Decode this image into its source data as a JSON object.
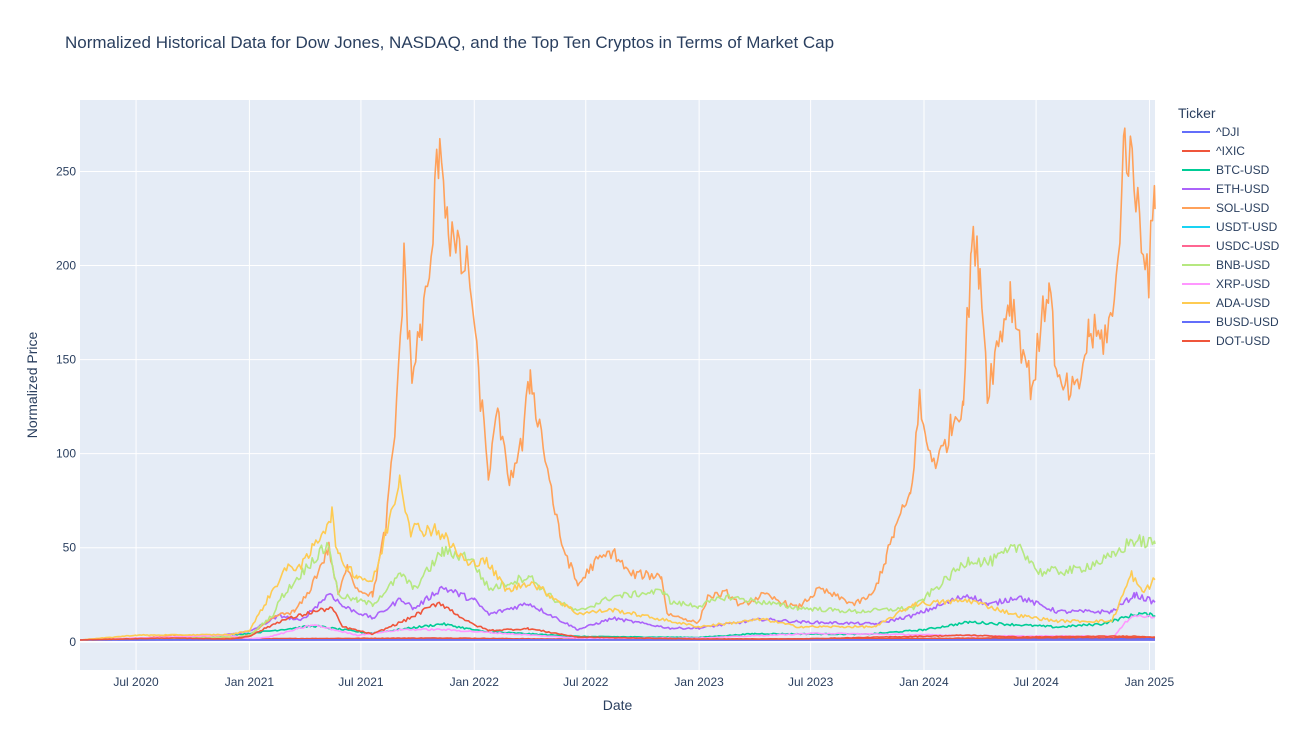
{
  "chart_data": {
    "type": "line",
    "title": "Normalized Historical Data for Dow Jones, NASDAQ, and the Top Ten Cryptos in Terms of Market Cap",
    "xlabel": "Date",
    "ylabel": "Normalized Price",
    "xlim": [
      "2020-04-01",
      "2025-01-10"
    ],
    "ylim": [
      -15,
      288
    ],
    "x_ticks": [
      {
        "date": "2020-07-01",
        "label": "Jul 2020"
      },
      {
        "date": "2021-01-01",
        "label": "Jan 2021"
      },
      {
        "date": "2021-07-01",
        "label": "Jul 2021"
      },
      {
        "date": "2022-01-01",
        "label": "Jan 2022"
      },
      {
        "date": "2022-07-01",
        "label": "Jul 2022"
      },
      {
        "date": "2023-01-01",
        "label": "Jan 2023"
      },
      {
        "date": "2023-07-01",
        "label": "Jul 2023"
      },
      {
        "date": "2024-01-01",
        "label": "Jan 2024"
      },
      {
        "date": "2024-07-01",
        "label": "Jul 2024"
      },
      {
        "date": "2025-01-01",
        "label": "Jan 2025"
      }
    ],
    "y_ticks": [
      0,
      50,
      100,
      150,
      200,
      250
    ],
    "grid": true,
    "legend": {
      "title": "Ticker",
      "placement": "right"
    },
    "series": [
      {
        "name": "^DJI",
        "color": "#636efa",
        "points": [
          [
            "2020-04-01",
            1.0
          ],
          [
            "2021-01-01",
            1.2
          ],
          [
            "2022-01-01",
            1.4
          ],
          [
            "2023-01-01",
            1.3
          ],
          [
            "2024-01-01",
            1.5
          ],
          [
            "2025-01-10",
            1.7
          ]
        ]
      },
      {
        "name": "^IXIC",
        "color": "#ef553b",
        "points": [
          [
            "2020-04-01",
            1.0
          ],
          [
            "2021-01-01",
            1.6
          ],
          [
            "2021-11-15",
            2.0
          ],
          [
            "2022-06-15",
            1.3
          ],
          [
            "2023-01-01",
            1.3
          ],
          [
            "2024-01-01",
            1.8
          ],
          [
            "2025-01-10",
            2.4
          ]
        ]
      },
      {
        "name": "BTC-USD",
        "color": "#00cc96",
        "points": [
          [
            "2020-04-01",
            1.0
          ],
          [
            "2020-10-01",
            1.7
          ],
          [
            "2021-01-01",
            4.5
          ],
          [
            "2021-04-15",
            8.5
          ],
          [
            "2021-07-15",
            4.5
          ],
          [
            "2021-11-10",
            9.5
          ],
          [
            "2022-01-15",
            5.5
          ],
          [
            "2022-06-20",
            2.8
          ],
          [
            "2022-12-31",
            2.3
          ],
          [
            "2023-04-01",
            4.3
          ],
          [
            "2023-10-01",
            4.0
          ],
          [
            "2024-01-01",
            6.4
          ],
          [
            "2024-03-15",
            10.5
          ],
          [
            "2024-08-05",
            7.8
          ],
          [
            "2024-10-15",
            9.5
          ],
          [
            "2024-12-15",
            15.0
          ],
          [
            "2025-01-10",
            14.0
          ]
        ]
      },
      {
        "name": "ETH-USD",
        "color": "#ab63fa",
        "points": [
          [
            "2020-04-01",
            1.0
          ],
          [
            "2020-07-01",
            1.7
          ],
          [
            "2020-11-01",
            2.7
          ],
          [
            "2021-01-01",
            5.5
          ],
          [
            "2021-02-20",
            14.0
          ],
          [
            "2021-03-25",
            11.0
          ],
          [
            "2021-05-12",
            26.0
          ],
          [
            "2021-06-01",
            19.0
          ],
          [
            "2021-07-20",
            12.5
          ],
          [
            "2021-09-05",
            23.0
          ],
          [
            "2021-09-25",
            17.5
          ],
          [
            "2021-11-10",
            29.0
          ],
          [
            "2022-01-01",
            22.0
          ],
          [
            "2022-01-25",
            14.5
          ],
          [
            "2022-03-30",
            20.5
          ],
          [
            "2022-06-18",
            6.5
          ],
          [
            "2022-08-14",
            12.5
          ],
          [
            "2022-11-15",
            7.2
          ],
          [
            "2023-01-01",
            7.3
          ],
          [
            "2023-04-15",
            12.0
          ],
          [
            "2023-06-15",
            10.5
          ],
          [
            "2023-10-15",
            9.5
          ],
          [
            "2023-12-15",
            14.0
          ],
          [
            "2024-03-12",
            25.0
          ],
          [
            "2024-04-15",
            19.5
          ],
          [
            "2024-06-01",
            24.0
          ],
          [
            "2024-08-05",
            16.0
          ],
          [
            "2024-11-01",
            16.0
          ],
          [
            "2024-12-08",
            25.0
          ],
          [
            "2025-01-10",
            21.0
          ]
        ]
      },
      {
        "name": "SOL-USD",
        "color": "#ffa15a",
        "points": [
          [
            "2020-04-01",
            1.0
          ],
          [
            "2020-07-15",
            2.0
          ],
          [
            "2020-09-01",
            3.6
          ],
          [
            "2020-12-01",
            2.0
          ],
          [
            "2021-01-01",
            3.5
          ],
          [
            "2021-02-15",
            14.0
          ],
          [
            "2021-03-15",
            16.0
          ],
          [
            "2021-04-05",
            25.0
          ],
          [
            "2021-05-10",
            50.0
          ],
          [
            "2021-05-25",
            25.0
          ],
          [
            "2021-06-10",
            40.0
          ],
          [
            "2021-06-25",
            28.0
          ],
          [
            "2021-07-20",
            25.0
          ],
          [
            "2021-08-10",
            60.0
          ],
          [
            "2021-08-25",
            110.0
          ],
          [
            "2021-09-09",
            200.0
          ],
          [
            "2021-09-22",
            140.0
          ],
          [
            "2021-10-05",
            165.0
          ],
          [
            "2021-10-20",
            190.0
          ],
          [
            "2021-11-06",
            272.0
          ],
          [
            "2021-11-20",
            220.0
          ],
          [
            "2021-12-05",
            205.0
          ],
          [
            "2021-12-25",
            195.0
          ],
          [
            "2022-01-05",
            150.0
          ],
          [
            "2022-01-24",
            90.0
          ],
          [
            "2022-02-10",
            122.0
          ],
          [
            "2022-02-24",
            85.0
          ],
          [
            "2022-03-20",
            105.0
          ],
          [
            "2022-04-02",
            142.0
          ],
          [
            "2022-04-30",
            92.0
          ],
          [
            "2022-05-20",
            55.0
          ],
          [
            "2022-06-18",
            30.0
          ],
          [
            "2022-07-15",
            42.0
          ],
          [
            "2022-08-14",
            48.0
          ],
          [
            "2022-09-10",
            36.0
          ],
          [
            "2022-11-01",
            35.0
          ],
          [
            "2022-11-10",
            15.0
          ],
          [
            "2022-12-31",
            10.0
          ],
          [
            "2023-01-15",
            24.0
          ],
          [
            "2023-02-15",
            26.0
          ],
          [
            "2023-03-10",
            19.0
          ],
          [
            "2023-04-15",
            25.0
          ],
          [
            "2023-06-10",
            18.0
          ],
          [
            "2023-07-15",
            28.0
          ],
          [
            "2023-09-10",
            20.0
          ],
          [
            "2023-10-10",
            25.0
          ],
          [
            "2023-11-01",
            45.0
          ],
          [
            "2023-11-15",
            60.0
          ],
          [
            "2023-12-10",
            78.0
          ],
          [
            "2023-12-25",
            127.0
          ],
          [
            "2024-01-05",
            105.0
          ],
          [
            "2024-01-23",
            95.0
          ],
          [
            "2024-02-15",
            115.0
          ],
          [
            "2024-03-05",
            130.0
          ],
          [
            "2024-03-18",
            210.0
          ],
          [
            "2024-04-01",
            200.0
          ],
          [
            "2024-04-13",
            135.0
          ],
          [
            "2024-05-20",
            185.0
          ],
          [
            "2024-06-24",
            135.0
          ],
          [
            "2024-07-22",
            193.0
          ],
          [
            "2024-08-05",
            135.0
          ],
          [
            "2024-09-06",
            132.0
          ],
          [
            "2024-09-25",
            165.0
          ],
          [
            "2024-10-15",
            160.0
          ],
          [
            "2024-11-05",
            175.0
          ],
          [
            "2024-11-22",
            270.0
          ],
          [
            "2024-12-10",
            240.0
          ],
          [
            "2024-12-31",
            195.0
          ],
          [
            "2025-01-06",
            225.0
          ],
          [
            "2025-01-10",
            230.0
          ]
        ]
      },
      {
        "name": "USDT-USD",
        "color": "#19d3f3",
        "points": [
          [
            "2020-04-01",
            1.0
          ],
          [
            "2025-01-10",
            1.0
          ]
        ]
      },
      {
        "name": "USDC-USD",
        "color": "#ff6692",
        "points": [
          [
            "2020-04-01",
            1.0
          ],
          [
            "2025-01-10",
            1.0
          ]
        ]
      },
      {
        "name": "BNB-USD",
        "color": "#b6e880",
        "points": [
          [
            "2020-04-01",
            1.0
          ],
          [
            "2020-10-01",
            2.2
          ],
          [
            "2021-01-01",
            3.0
          ],
          [
            "2021-02-10",
            15.0
          ],
          [
            "2021-02-20",
            23.0
          ],
          [
            "2021-04-10",
            42.0
          ],
          [
            "2021-05-10",
            52.0
          ],
          [
            "2021-05-25",
            25.0
          ],
          [
            "2021-06-25",
            22.0
          ],
          [
            "2021-07-20",
            20.0
          ],
          [
            "2021-09-05",
            36.0
          ],
          [
            "2021-09-25",
            28.0
          ],
          [
            "2021-11-10",
            48.0
          ],
          [
            "2021-12-25",
            45.0
          ],
          [
            "2022-01-25",
            28.0
          ],
          [
            "2022-03-30",
            35.0
          ],
          [
            "2022-05-12",
            22.0
          ],
          [
            "2022-06-18",
            16.0
          ],
          [
            "2022-08-14",
            24.0
          ],
          [
            "2022-11-07",
            27.0
          ],
          [
            "2022-11-15",
            21.0
          ],
          [
            "2022-12-31",
            19.0
          ],
          [
            "2023-02-15",
            24.0
          ],
          [
            "2023-06-10",
            18.0
          ],
          [
            "2023-09-15",
            16.0
          ],
          [
            "2023-12-15",
            18.0
          ],
          [
            "2024-01-01",
            23.0
          ],
          [
            "2024-03-15",
            44.0
          ],
          [
            "2024-04-15",
            42.0
          ],
          [
            "2024-06-05",
            51.0
          ],
          [
            "2024-07-05",
            37.0
          ],
          [
            "2024-09-01",
            38.0
          ],
          [
            "2024-11-01",
            45.0
          ],
          [
            "2024-12-04",
            54.0
          ],
          [
            "2025-01-10",
            52.0
          ]
        ]
      },
      {
        "name": "XRP-USD",
        "color": "#ff97ff",
        "points": [
          [
            "2020-04-01",
            1.0
          ],
          [
            "2020-11-25",
            3.5
          ],
          [
            "2021-01-01",
            1.5
          ],
          [
            "2021-02-01",
            2.5
          ],
          [
            "2021-04-14",
            9.0
          ],
          [
            "2021-06-25",
            3.5
          ],
          [
            "2021-09-06",
            6.5
          ],
          [
            "2021-11-10",
            6.5
          ],
          [
            "2022-06-18",
            2.0
          ],
          [
            "2022-12-31",
            2.0
          ],
          [
            "2023-07-13",
            4.5
          ],
          [
            "2024-06-01",
            3.0
          ],
          [
            "2024-11-05",
            3.0
          ],
          [
            "2024-12-03",
            14.0
          ],
          [
            "2025-01-10",
            13.0
          ]
        ]
      },
      {
        "name": "ADA-USD",
        "color": "#fecb52",
        "points": [
          [
            "2020-04-01",
            1.0
          ],
          [
            "2020-07-01",
            3.5
          ],
          [
            "2020-12-01",
            3.8
          ],
          [
            "2021-01-01",
            6.0
          ],
          [
            "2021-02-27",
            38.0
          ],
          [
            "2021-04-01",
            42.0
          ],
          [
            "2021-05-15",
            68.0
          ],
          [
            "2021-05-25",
            45.0
          ],
          [
            "2021-06-25",
            35.0
          ],
          [
            "2021-07-20",
            32.0
          ],
          [
            "2021-08-01",
            45.0
          ],
          [
            "2021-09-02",
            88.0
          ],
          [
            "2021-09-20",
            60.0
          ],
          [
            "2021-11-01",
            60.0
          ],
          [
            "2021-12-25",
            40.0
          ],
          [
            "2022-01-15",
            45.0
          ],
          [
            "2022-02-24",
            27.0
          ],
          [
            "2022-04-01",
            32.0
          ],
          [
            "2022-06-18",
            15.0
          ],
          [
            "2022-08-14",
            17.0
          ],
          [
            "2022-12-31",
            8.0
          ],
          [
            "2023-04-15",
            12.0
          ],
          [
            "2023-06-10",
            8.0
          ],
          [
            "2023-10-15",
            8.0
          ],
          [
            "2023-12-15",
            20.0
          ],
          [
            "2024-03-15",
            22.0
          ],
          [
            "2024-06-01",
            14.0
          ],
          [
            "2024-08-05",
            11.0
          ],
          [
            "2024-11-01",
            11.0
          ],
          [
            "2024-12-03",
            36.0
          ],
          [
            "2024-12-20",
            26.0
          ],
          [
            "2025-01-10",
            33.0
          ]
        ]
      },
      {
        "name": "BUSD-USD",
        "color": "#636efa",
        "points": [
          [
            "2020-04-01",
            1.0
          ],
          [
            "2025-01-10",
            1.0
          ]
        ]
      },
      {
        "name": "DOT-USD",
        "color": "#ef553b",
        "points": [
          [
            "2020-04-01",
            1.0
          ],
          [
            "2020-08-20",
            2.0
          ],
          [
            "2020-12-01",
            1.5
          ],
          [
            "2021-01-01",
            3.0
          ],
          [
            "2021-02-20",
            11.0
          ],
          [
            "2021-04-15",
            16.0
          ],
          [
            "2021-05-15",
            18.0
          ],
          [
            "2021-06-01",
            8.0
          ],
          [
            "2021-07-20",
            4.0
          ],
          [
            "2021-09-15",
            12.0
          ],
          [
            "2021-11-05",
            21.0
          ],
          [
            "2021-12-25",
            10.0
          ],
          [
            "2022-01-25",
            6.0
          ],
          [
            "2022-03-30",
            7.0
          ],
          [
            "2022-06-18",
            2.5
          ],
          [
            "2022-12-31",
            1.5
          ],
          [
            "2023-06-10",
            1.5
          ],
          [
            "2024-03-15",
            3.5
          ],
          [
            "2024-06-01",
            2.5
          ],
          [
            "2024-12-03",
            3.0
          ],
          [
            "2025-01-10",
            2.5
          ]
        ]
      }
    ]
  }
}
